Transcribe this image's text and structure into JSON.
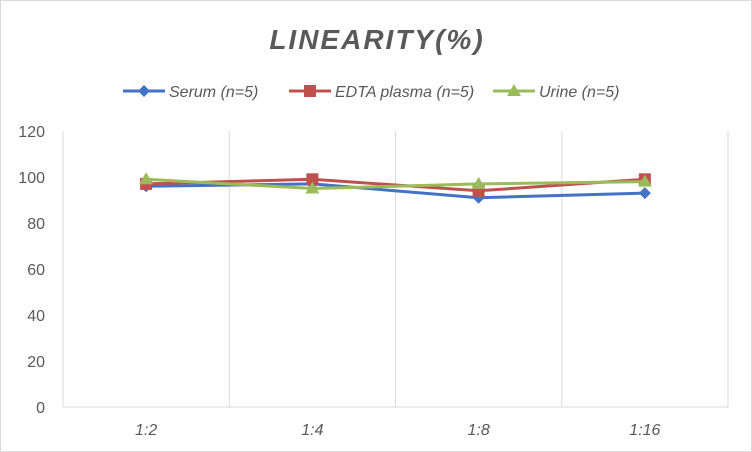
{
  "chart_data": {
    "type": "line",
    "title": "LINEARITY(%)",
    "xlabel": "",
    "ylabel": "",
    "categories": [
      "1:2",
      "1:4",
      "1:8",
      "1:16"
    ],
    "ylim": [
      0,
      120
    ],
    "yticks": [
      0,
      20,
      40,
      60,
      80,
      100,
      120
    ],
    "grid": "vertical",
    "legend": "top",
    "series": [
      {
        "name": "Serum (n=5)",
        "values": [
          96,
          97,
          91,
          93
        ],
        "color": "#4472c4",
        "marker": "diamond"
      },
      {
        "name": "EDTA plasma (n=5)",
        "values": [
          97,
          99,
          94,
          99
        ],
        "color": "#c0504d",
        "marker": "square"
      },
      {
        "name": "Urine (n=5)",
        "values": [
          99,
          95,
          97,
          98
        ],
        "color": "#9bbb59",
        "marker": "triangle"
      }
    ]
  }
}
